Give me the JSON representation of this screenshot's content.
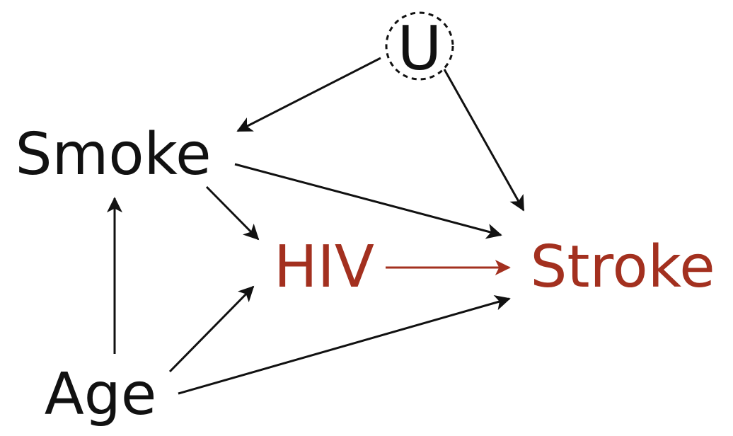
{
  "colors": {
    "default": "#111111",
    "highlight": "#a3301f",
    "background": "#ffffff"
  },
  "nodes": {
    "u": {
      "label": "U",
      "latent": true
    },
    "smoke": {
      "label": "Smoke"
    },
    "hiv": {
      "label": "HIV",
      "highlight": true
    },
    "stroke": {
      "label": "Stroke",
      "highlight": true
    },
    "age": {
      "label": "Age"
    }
  },
  "edges": [
    {
      "from": "u",
      "to": "smoke"
    },
    {
      "from": "u",
      "to": "stroke"
    },
    {
      "from": "smoke",
      "to": "stroke"
    },
    {
      "from": "smoke",
      "to": "hiv"
    },
    {
      "from": "hiv",
      "to": "stroke",
      "highlight": true
    },
    {
      "from": "age",
      "to": "smoke"
    },
    {
      "from": "age",
      "to": "hiv"
    },
    {
      "from": "age",
      "to": "stroke"
    }
  ]
}
